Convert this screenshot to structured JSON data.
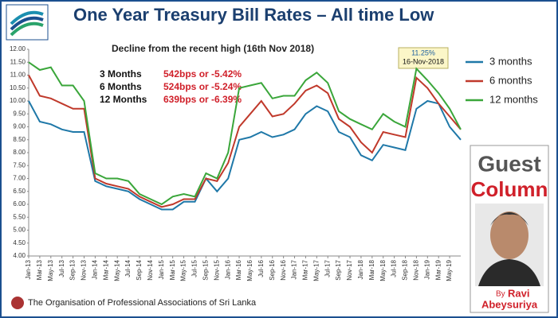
{
  "chart_data": {
    "type": "line",
    "title": "One Year Treasury Bill Rates – All time Low",
    "subtitle": "Decline from the recent high (16th Nov 2018)",
    "decline_table": [
      {
        "tenor": "3 Months",
        "change": "542bps or -5.42%"
      },
      {
        "tenor": "6 Months",
        "change": "524bps or -5.24%"
      },
      {
        "tenor": "12 Months",
        "change": "639bps or -6.39%"
      }
    ],
    "peak_label": {
      "rate": "11.25%",
      "date": "16-Nov-2018"
    },
    "categories": [
      "Jan-13",
      "Mar-13",
      "May-13",
      "Jul-13",
      "Sep-13",
      "Nov-13",
      "Jan-14",
      "Mar-14",
      "May-14",
      "Jul-14",
      "Sep-14",
      "Nov-14",
      "Jan-15",
      "Mar-15",
      "May-15",
      "Jul-15",
      "Sep-15",
      "Nov-15",
      "Jan-16",
      "Mar-16",
      "May-16",
      "Jul-16",
      "Sep-16",
      "Nov-16",
      "Jan-17",
      "Mar-17",
      "May-17",
      "Jul-17",
      "Sep-17",
      "Nov-17",
      "Jan-18",
      "Mar-18",
      "May-18",
      "Jul-18",
      "Sep-18",
      "Nov-18",
      "Jan-19",
      "Mar-19",
      "May-19",
      null
    ],
    "series": [
      {
        "name": "3 months",
        "color": "#1f78a8",
        "values": [
          10.0,
          9.2,
          9.1,
          8.9,
          8.8,
          8.8,
          6.9,
          6.7,
          6.6,
          6.5,
          6.2,
          6.0,
          5.8,
          5.8,
          6.1,
          6.1,
          7.0,
          6.5,
          7.0,
          8.5,
          8.6,
          8.8,
          8.6,
          8.7,
          8.9,
          9.5,
          9.8,
          9.6,
          8.8,
          8.6,
          7.9,
          7.7,
          8.3,
          8.2,
          8.1,
          9.7,
          10.0,
          9.9,
          9.0,
          8.5
        ]
      },
      {
        "name": "6 months",
        "color": "#c0392b",
        "values": [
          11.0,
          10.2,
          10.1,
          9.9,
          9.7,
          9.7,
          7.0,
          6.8,
          6.7,
          6.6,
          6.3,
          6.1,
          5.9,
          6.0,
          6.2,
          6.2,
          7.0,
          6.9,
          7.6,
          9.0,
          9.5,
          10.0,
          9.4,
          9.5,
          9.9,
          10.4,
          10.6,
          10.3,
          9.3,
          9.0,
          8.4,
          8.0,
          8.8,
          8.7,
          8.6,
          10.9,
          10.5,
          9.9,
          9.4,
          8.9
        ]
      },
      {
        "name": "12 months",
        "color": "#3aa63a",
        "values": [
          11.5,
          11.2,
          11.3,
          10.6,
          10.6,
          10.0,
          7.2,
          7.0,
          7.0,
          6.9,
          6.4,
          6.2,
          6.0,
          6.3,
          6.4,
          6.3,
          7.2,
          7.0,
          8.0,
          10.5,
          10.6,
          10.7,
          10.1,
          10.2,
          10.2,
          10.8,
          11.1,
          10.7,
          9.6,
          9.3,
          9.1,
          8.9,
          9.5,
          9.2,
          9.0,
          11.25,
          10.8,
          10.3,
          9.7,
          8.9
        ]
      }
    ],
    "ylim": [
      4,
      12
    ],
    "yticks": [
      {
        "value": 4,
        "label": "4.00"
      },
      {
        "value": 4.5,
        "label": "4.50"
      },
      {
        "value": 5,
        "label": "5.00"
      },
      {
        "value": 5.5,
        "label": "5.50"
      },
      {
        "value": 6,
        "label": "6.00"
      },
      {
        "value": 6.5,
        "label": "6.50"
      },
      {
        "value": 7,
        "label": "7.00"
      },
      {
        "value": 7.5,
        "label": "7.50"
      },
      {
        "value": 8,
        "label": "8.00"
      },
      {
        "value": 8.5,
        "label": "8.50"
      },
      {
        "value": 9,
        "label": "9.00"
      },
      {
        "value": 9.5,
        "label": "9.50"
      },
      {
        "value": 10,
        "label": "10.00"
      },
      {
        "value": 10.5,
        "label": "10.50"
      },
      {
        "value": 11,
        "label": "11.00"
      },
      {
        "value": 11.5,
        "label": "11.50"
      },
      {
        "value": 12,
        "label": "12.00"
      }
    ],
    "grid": false,
    "legend": "right"
  },
  "guest_column": {
    "word1": "Guest",
    "word2": "Column",
    "by": "By",
    "author_first": "Ravi",
    "author_last": "Abeysuriya"
  },
  "footer": {
    "organisation": "The Organisation of Professional Associations of Sri Lanka"
  }
}
